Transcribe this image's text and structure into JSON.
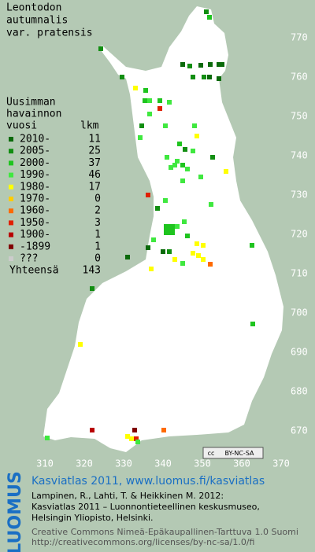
{
  "title": [
    "Leontodon",
    "autumnalis",
    "var. pratensis"
  ],
  "legend": {
    "heading": [
      "Uusimman",
      "havainnon"
    ],
    "col_year": "vuosi",
    "col_count": "lkm",
    "rows": [
      {
        "label": "2010-",
        "count": 11,
        "color": "#0b6a0b"
      },
      {
        "label": "2005-",
        "count": 25,
        "color": "#128e12"
      },
      {
        "label": "2000-",
        "count": 37,
        "color": "#1fc41f"
      },
      {
        "label": "1990-",
        "count": 46,
        "color": "#3fe83f"
      },
      {
        "label": "1980-",
        "count": 17,
        "color": "#ffff00"
      },
      {
        "label": "1970-",
        "count": 0,
        "color": "#ffcc00"
      },
      {
        "label": "1960-",
        "count": 2,
        "color": "#ff6a00"
      },
      {
        "label": "1950-",
        "count": 3,
        "color": "#e02000"
      },
      {
        "label": "1900-",
        "count": 1,
        "color": "#b80000"
      },
      {
        "label": "-1899",
        "count": 1,
        "color": "#800000"
      },
      {
        "label": "???",
        "count": 0,
        "color": "#cccccc"
      }
    ],
    "total_label": "Yhteensä",
    "total": 143
  },
  "grid": {
    "northing": [
      770,
      760,
      750,
      740,
      730,
      720,
      710,
      700,
      690,
      680,
      670
    ],
    "easting": [
      310,
      320,
      330,
      340,
      350,
      360,
      370
    ]
  },
  "badge": {
    "icon": "cc",
    "text": "BY-NC-SA"
  },
  "footer": {
    "logo": "LUOMUS",
    "heading": "Kasviatlas 2011, www.luomus.fi/kasviatlas",
    "citation": [
      "Lampinen, R., Lahti, T. & Heikkinen M. 2012:",
      "Kasviatlas 2011 – Luonnontieteellinen keskusmuseo,",
      "Helsingin Yliopisto, Helsinki."
    ],
    "license": [
      "Creative Commons Nimeä-Epäkaupallinen-Tarttuva 1.0 Suomi",
      "http://creativecommons.org/licenses/by-nc-sa/1.0/fi"
    ]
  }
}
